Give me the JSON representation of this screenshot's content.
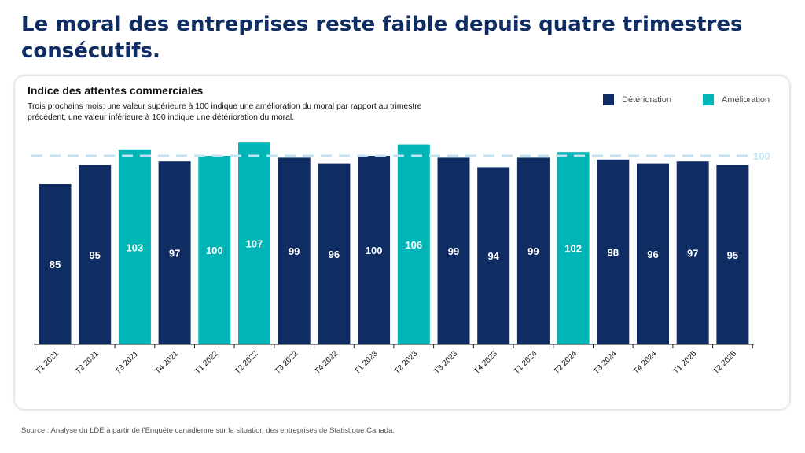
{
  "headline": "Le moral des entreprises reste faible depuis quatre trimestres consécutifs.",
  "source": "Source : Analyse du LDE à partir de l'Enquête canadienne sur la situation des entreprises de Statistique Canada.",
  "colors": {
    "deterioration": "#0f2d63",
    "amelioration": "#00b5b5",
    "reference_line": "#bfe3f3",
    "headline": "#0f2d63"
  },
  "chart_data": {
    "type": "bar",
    "title": "Indice des attentes commerciales",
    "subtitle": "Trois prochains mois; une valeur supérieure à 100 indique une amélioration du moral par rapport au trimestre précédent, une valeur inférieure à 100 indique une détérioration du moral.",
    "categories": [
      "T1 2021",
      "T2 2021",
      "T3 2021",
      "T4 2021",
      "T1 2022",
      "T2 2022",
      "T3 2022",
      "T4 2022",
      "T1 2023",
      "T2 2023",
      "T3 2023",
      "T4 2023",
      "T1 2024",
      "T2 2024",
      "T3 2024",
      "T4 2024",
      "T1 2025",
      "T2 2025"
    ],
    "values": [
      85,
      95,
      103,
      97,
      100,
      107,
      99,
      96,
      100,
      106,
      99,
      94,
      99,
      102,
      98,
      96,
      97,
      95
    ],
    "bar_labels": [
      "85",
      "95",
      "103",
      "97",
      "100",
      "107",
      "99",
      "96",
      "100",
      "106",
      "99",
      "94",
      "99",
      "102",
      "98",
      "96",
      "97",
      "95"
    ],
    "status": [
      "Détérioration",
      "Détérioration",
      "Amélioration",
      "Détérioration",
      "Amélioration",
      "Amélioration",
      "Détérioration",
      "Détérioration",
      "Détérioration",
      "Amélioration",
      "Détérioration",
      "Détérioration",
      "Détérioration",
      "Amélioration",
      "Détérioration",
      "Détérioration",
      "Détérioration",
      "Détérioration"
    ],
    "legend": [
      {
        "label": "Détérioration",
        "color": "#0f2d63"
      },
      {
        "label": "Amélioration",
        "color": "#00b5b5"
      }
    ],
    "legend_position": "top-right",
    "reference_line": {
      "value": 100,
      "label": "100",
      "style": "dashed"
    },
    "ylim": [
      0,
      110
    ],
    "grid": false,
    "xlabel": "",
    "ylabel": ""
  }
}
